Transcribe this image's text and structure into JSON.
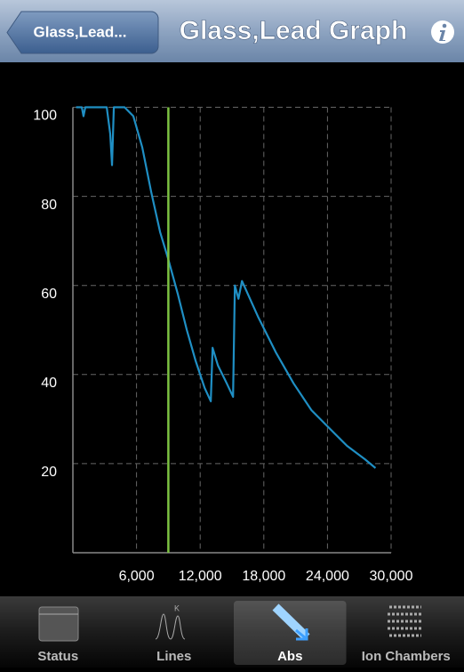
{
  "nav": {
    "back": "Glass,Lead...",
    "title": "Glass,Lead Graph"
  },
  "chart_data": {
    "type": "line",
    "x": [
      300,
      840,
      1000,
      1170,
      3190,
      3520,
      3690,
      3860,
      4870,
      5700,
      6540,
      7380,
      8220,
      8980,
      9900,
      10740,
      11580,
      12420,
      13000,
      13170,
      13680,
      14510,
      15100,
      15270,
      15610,
      15940,
      17450,
      19130,
      20810,
      22490,
      24160,
      25840,
      27520,
      28530
    ],
    "values": [
      100,
      100,
      98,
      100,
      100,
      94,
      87,
      100,
      100,
      98,
      91,
      81,
      72,
      66,
      58,
      50,
      43,
      37,
      34,
      46,
      42,
      38,
      35,
      60,
      57,
      61,
      53,
      45,
      38,
      32,
      28,
      24,
      21,
      19
    ],
    "color": "#1f8fc4",
    "marker_x": 9000,
    "marker_color": "#7cc242",
    "xlim": [
      0,
      30000
    ],
    "ylim": [
      0,
      100
    ],
    "xticks": [
      {
        "value": 6000,
        "label": "6,000"
      },
      {
        "value": 12000,
        "label": "12,000"
      },
      {
        "value": 18000,
        "label": "18,000"
      },
      {
        "value": 24000,
        "label": "24,000"
      },
      {
        "value": 30000,
        "label": "30,000"
      }
    ],
    "yticks": [
      20,
      40,
      60,
      80,
      100
    ],
    "grid": true
  },
  "tabs": [
    {
      "label": "Status",
      "selected": false
    },
    {
      "label": "Lines",
      "selected": false
    },
    {
      "label": "Abs",
      "selected": true
    },
    {
      "label": "Ion Chambers",
      "selected": false
    }
  ]
}
